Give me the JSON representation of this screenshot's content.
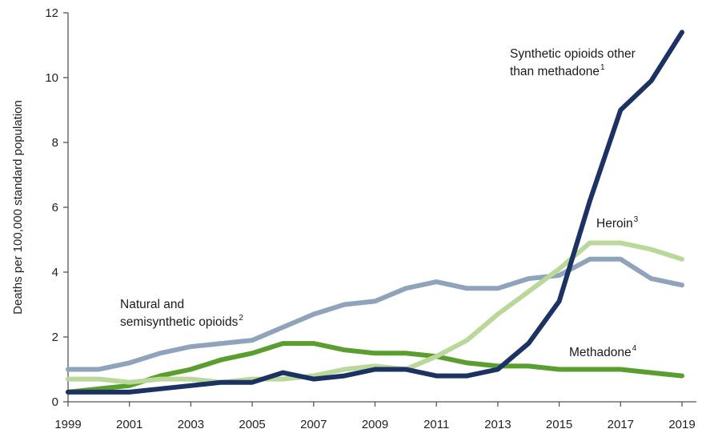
{
  "chart_data": {
    "type": "line",
    "title": "",
    "xlabel": "",
    "ylabel": "Deaths per 100,000 standard population",
    "xlim": [
      1999,
      2019
    ],
    "ylim": [
      0,
      12
    ],
    "x_ticks": [
      1999,
      2001,
      2003,
      2005,
      2007,
      2009,
      2011,
      2013,
      2015,
      2017,
      2019
    ],
    "y_ticks": [
      0,
      2,
      4,
      6,
      8,
      10,
      12
    ],
    "grid": false,
    "x": [
      1999,
      2000,
      2001,
      2002,
      2003,
      2004,
      2005,
      2006,
      2007,
      2008,
      2009,
      2010,
      2011,
      2012,
      2013,
      2014,
      2015,
      2016,
      2017,
      2018,
      2019
    ],
    "series": [
      {
        "key": "natural",
        "label_lines": [
          "Natural and",
          "semisynthetic opioids"
        ],
        "footnote": "2",
        "color": "#8fa3bb",
        "values": [
          1.0,
          1.0,
          1.2,
          1.5,
          1.7,
          1.8,
          1.9,
          2.3,
          2.7,
          3.0,
          3.1,
          3.5,
          3.7,
          3.5,
          3.5,
          3.8,
          3.9,
          4.4,
          4.4,
          3.8,
          3.6
        ]
      },
      {
        "key": "methadone",
        "label_lines": [
          "Methadone"
        ],
        "footnote": "4",
        "color": "#5a9e2f",
        "values": [
          0.3,
          0.4,
          0.5,
          0.8,
          1.0,
          1.3,
          1.5,
          1.8,
          1.8,
          1.6,
          1.5,
          1.5,
          1.4,
          1.2,
          1.1,
          1.1,
          1.0,
          1.0,
          1.0,
          0.9,
          0.8
        ]
      },
      {
        "key": "heroin",
        "label_lines": [
          "Heroin"
        ],
        "footnote": "3",
        "color": "#b9d89a",
        "values": [
          0.7,
          0.7,
          0.6,
          0.7,
          0.7,
          0.6,
          0.7,
          0.7,
          0.8,
          1.0,
          1.1,
          1.0,
          1.4,
          1.9,
          2.7,
          3.4,
          4.1,
          4.9,
          4.9,
          4.7,
          4.4
        ]
      },
      {
        "key": "synthetic",
        "label_lines": [
          "Synthetic opioids other",
          "than methadone"
        ],
        "footnote": "1",
        "color": "#1b3263",
        "values": [
          0.3,
          0.3,
          0.3,
          0.4,
          0.5,
          0.6,
          0.6,
          0.9,
          0.7,
          0.8,
          1.0,
          1.0,
          0.8,
          0.8,
          1.0,
          1.8,
          3.1,
          6.2,
          9.0,
          9.9,
          11.4
        ]
      }
    ]
  }
}
